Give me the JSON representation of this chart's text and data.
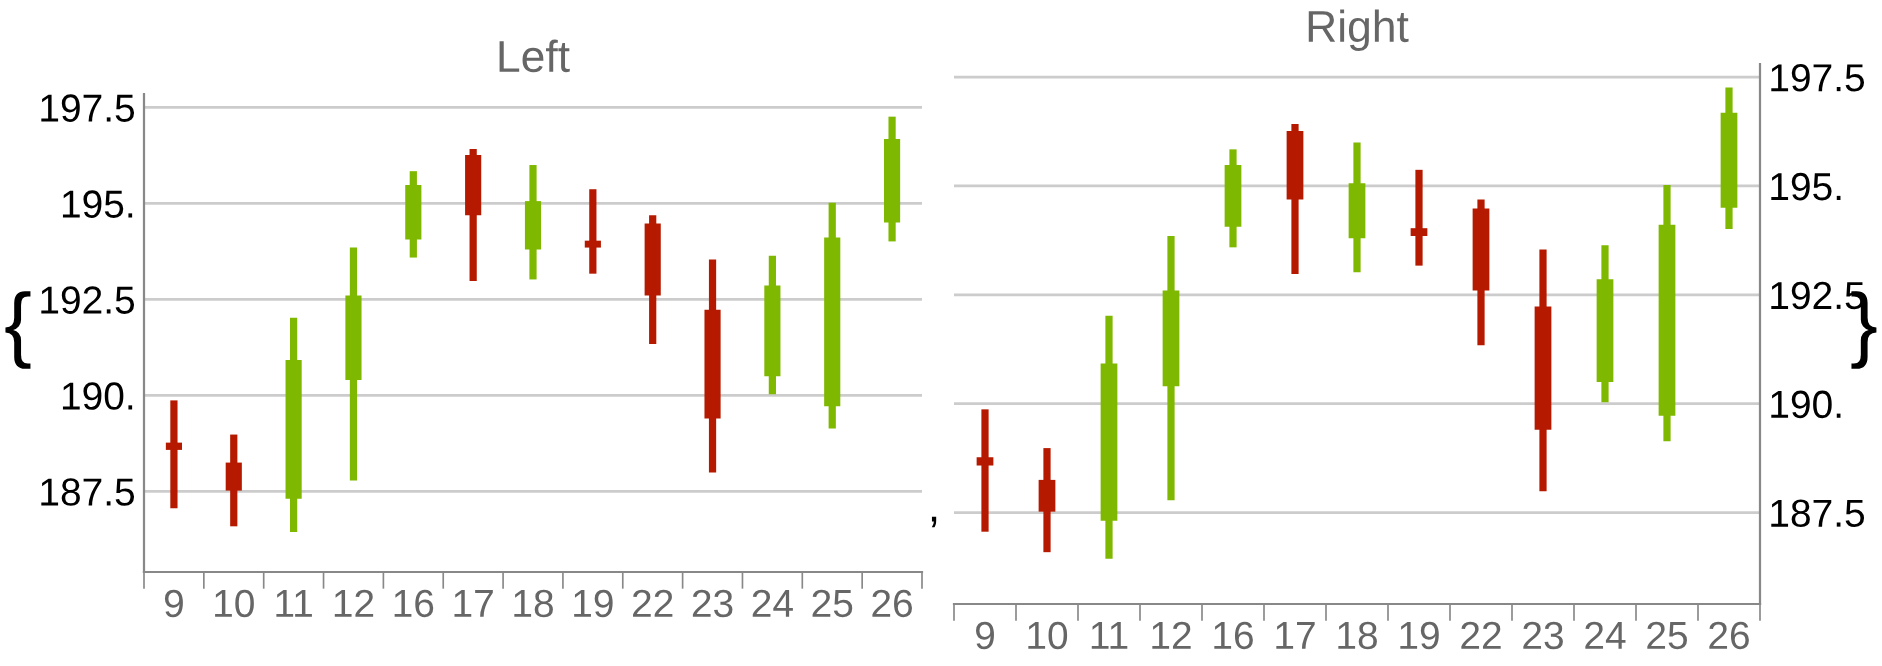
{
  "chart_data": [
    {
      "type": "candlestick",
      "title": "Left",
      "categories": [
        "9",
        "10",
        "11",
        "12",
        "16",
        "17",
        "18",
        "19",
        "22",
        "23",
        "24",
        "25",
        "26"
      ],
      "ohlc": [
        [
          188.77,
          189.87,
          187.06,
          188.58
        ],
        [
          188.25,
          188.98,
          186.59,
          187.52
        ],
        [
          187.31,
          192.02,
          186.44,
          190.92
        ],
        [
          190.4,
          193.85,
          187.78,
          192.6
        ],
        [
          194.06,
          195.84,
          193.59,
          195.48
        ],
        [
          196.26,
          196.42,
          192.98,
          194.69
        ],
        [
          193.8,
          196.0,
          193.02,
          195.06
        ],
        [
          194.03,
          195.37,
          193.17,
          193.85
        ],
        [
          194.48,
          194.69,
          191.34,
          192.6
        ],
        [
          192.23,
          193.54,
          187.99,
          189.4
        ],
        [
          190.5,
          193.64,
          190.03,
          192.86
        ],
        [
          189.72,
          195.02,
          189.14,
          194.11
        ],
        [
          194.5,
          197.26,
          194.01,
          196.68
        ]
      ],
      "colors": [
        "#b51a00",
        "#b51a00",
        "#7fb800",
        "#7fb800",
        "#7fb800",
        "#b51a00",
        "#7fb800",
        "#b51a00",
        "#b51a00",
        "#b51a00",
        "#7fb800",
        "#7fb800",
        "#7fb800"
      ],
      "ylim": [
        185.4,
        197.85
      ],
      "yticks": [
        {
          "value": 187.5,
          "label": "187.5"
        },
        {
          "value": 190,
          "label": "190."
        },
        {
          "value": 192.5,
          "label": "192.5"
        },
        {
          "value": 195,
          "label": "195."
        },
        {
          "value": 197.5,
          "label": "197.5"
        }
      ],
      "grid": "y",
      "annotations": [
        "{",
        ","
      ]
    },
    {
      "type": "candlestick",
      "title": "Right",
      "categories": [
        "9",
        "10",
        "11",
        "12",
        "16",
        "17",
        "18",
        "19",
        "22",
        "23",
        "24",
        "25",
        "26"
      ],
      "series": [
        {
          "axis": "y2",
          "ohlc": [
            [
              188.77,
              189.87,
              187.06,
              188.58
            ],
            [
              188.25,
              188.98,
              186.59,
              187.52
            ],
            [
              187.31,
              192.02,
              186.44,
              190.92
            ],
            [
              190.4,
              193.85,
              187.78,
              192.6
            ],
            [
              194.06,
              195.84,
              193.59,
              195.48
            ],
            [
              196.26,
              196.42,
              192.98,
              194.69
            ],
            [
              193.8,
              196.0,
              193.02,
              195.06
            ],
            [
              194.03,
              195.37,
              193.17,
              193.85
            ],
            [
              194.48,
              194.69,
              191.34,
              192.6
            ],
            [
              192.23,
              193.54,
              187.99,
              189.4
            ],
            [
              190.5,
              193.64,
              190.03,
              192.86
            ],
            [
              189.72,
              195.02,
              189.14,
              194.11
            ],
            [
              194.5,
              197.26,
              194.01,
              196.68
            ]
          ],
          "colors": [
            "#b51a00",
            "#b51a00",
            "#7fb800",
            "#7fb800",
            "#7fb800",
            "#b51a00",
            "#7fb800",
            "#b51a00",
            "#b51a00",
            "#b51a00",
            "#7fb800",
            "#7fb800",
            "#7fb800"
          ]
        }
      ],
      "y2lim": [
        185.4,
        197.8
      ],
      "y2ticks": [
        {
          "value": 187.5,
          "label": "187.5"
        },
        {
          "value": 190,
          "label": "190."
        },
        {
          "value": 192.5,
          "label": "192.5"
        },
        {
          "value": 195,
          "label": "195."
        },
        {
          "value": 197.5,
          "label": "197.5"
        }
      ],
      "grid": "y",
      "annotations": [
        "}"
      ]
    }
  ]
}
